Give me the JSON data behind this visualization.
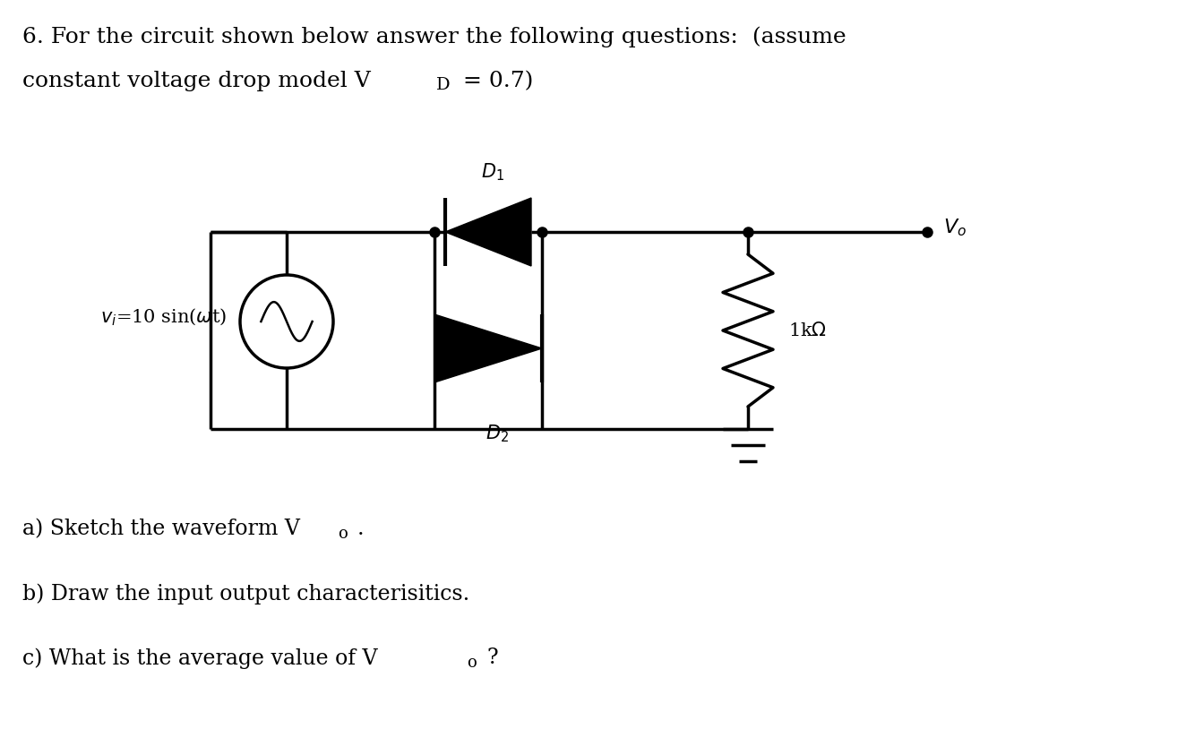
{
  "background_color": "#ffffff",
  "text_color": "#000000",
  "font_size_title": 18,
  "font_size_text": 17,
  "title_line1": "6. For the circuit shown below answer the following questions:  (assume",
  "title_line2_main": "constant voltage drop model V",
  "title_line2_sub": "D",
  "title_line2_end": " = 0.7)",
  "qa": "a) Sketch the waveform V",
  "qa_sub": "o",
  "qa_end": ".",
  "qb": "b) Draw the input output characterisitics.",
  "qc": "c) What is the average value of V",
  "qc_sub": "o",
  "qc_end": "?"
}
